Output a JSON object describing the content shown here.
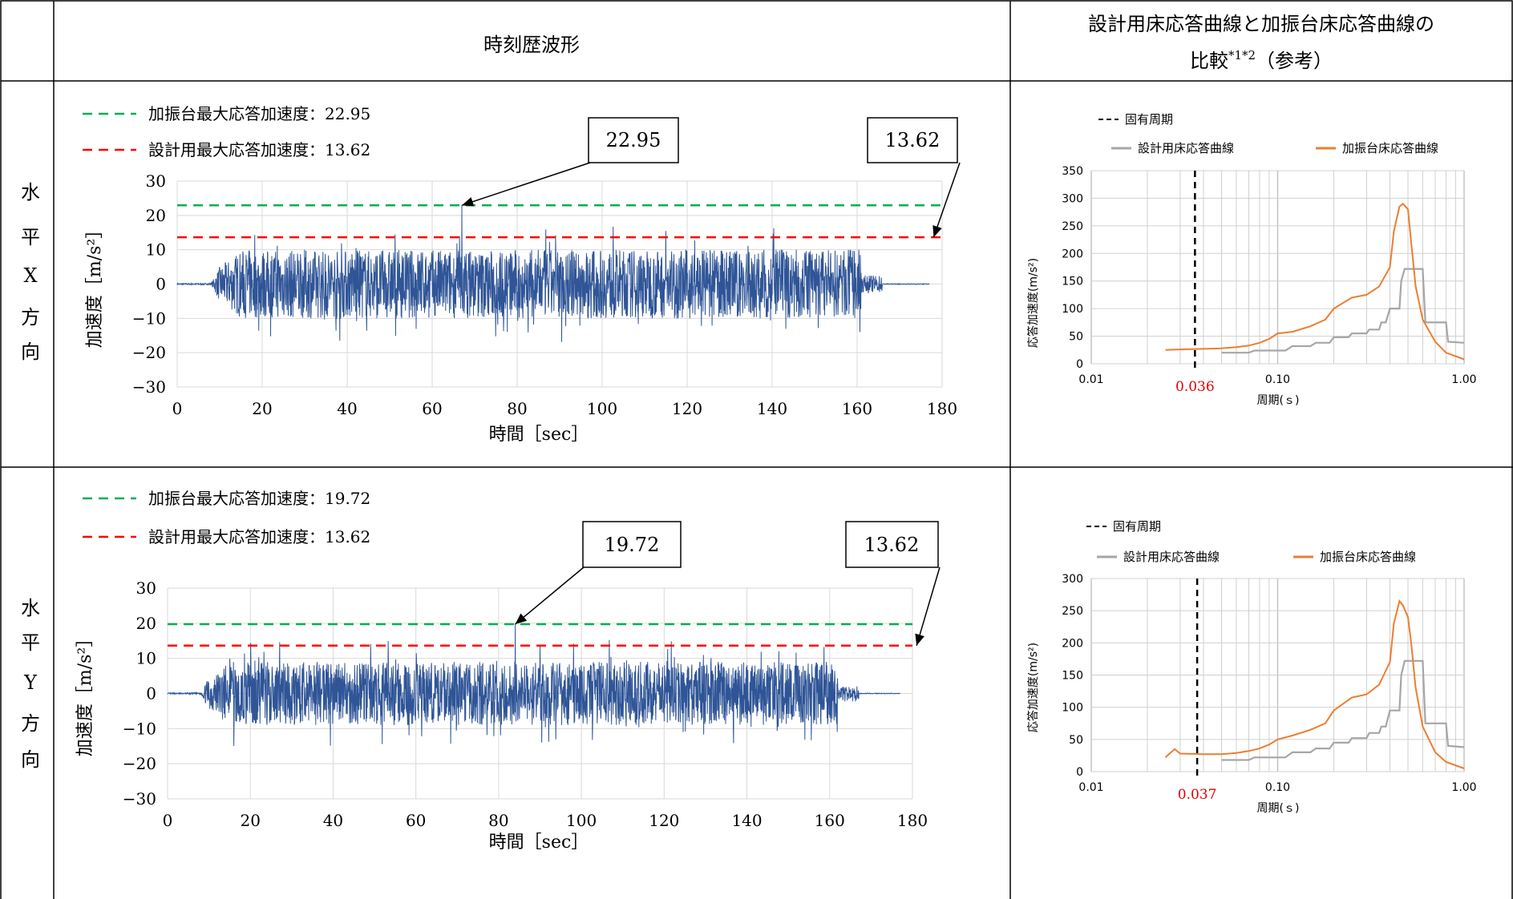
{
  "header": {
    "col_time": "時刻歴波形",
    "col_resp_line1": "設計用床応答曲線と加振台床応答曲線の",
    "col_resp_line2": "比較",
    "col_resp_sup": "*1*2",
    "col_resp_tail": "（参考）"
  },
  "rows": [
    {
      "direction_chars": [
        "水",
        "平",
        "X",
        "方",
        "向"
      ],
      "legend_green": "加振台最大応答加速度：22.95",
      "legend_red": "設計用最大応答加速度：13.62",
      "callout_green": "22.95",
      "callout_red": "13.62",
      "natural_period_label": "0.036"
    },
    {
      "direction_chars": [
        "水",
        "平",
        "Y",
        "方",
        "向"
      ],
      "legend_green": "加振台最大応答加速度：19.72",
      "legend_red": "設計用最大応答加速度：13.62",
      "callout_green": "19.72",
      "callout_red": "13.62",
      "natural_period_label": "0.037"
    }
  ],
  "chart_data": [
    {
      "type": "line",
      "chart": "time-history-X",
      "xlabel": "時間［sec］",
      "ylabel": "加速度［m/s²］",
      "xlim": [
        0,
        180
      ],
      "ylim": [
        -30,
        30
      ],
      "xticks": [
        "0",
        "20",
        "40",
        "60",
        "80",
        "100",
        "120",
        "140",
        "160",
        "180"
      ],
      "yticks": [
        "30",
        "20",
        "10",
        "0",
        "−10",
        "−20",
        "−30"
      ],
      "grid": true,
      "reference_lines": [
        {
          "legend": "加振台最大応答加速度：22.95",
          "y": 22.95,
          "color": "#00b050",
          "style": "dashed"
        },
        {
          "legend": "設計用最大応答加速度：13.62",
          "y": 13.62,
          "color": "#ff0000",
          "style": "dashed"
        }
      ],
      "series": [
        {
          "name": "",
          "color": "#2f5597",
          "signal": {
            "t_start": 0,
            "t_end": 177,
            "strong_start": 10,
            "strong_end": 163,
            "peak_pos": 22.95,
            "peak_neg": -22,
            "typical_amp": 10,
            "peak_time": 67
          }
        }
      ]
    },
    {
      "type": "line",
      "chart": "response-spectrum-X",
      "xlabel": "周期(ｓ)",
      "ylabel": "応答加速度(m/s²)",
      "xscale": "log",
      "xlim": [
        0.01,
        1.0
      ],
      "ylim": [
        0,
        350
      ],
      "xticks": [
        "0.01",
        "0.10",
        "1.00"
      ],
      "yticks": [
        "350",
        "300",
        "250",
        "200",
        "150",
        "100",
        "50",
        "0"
      ],
      "grid": true,
      "natural_period": {
        "legend": "固有周期",
        "x": 0.036,
        "label": "0.036",
        "color": "#000000"
      },
      "series": [
        {
          "name": "設計用床応答曲線",
          "color": "#a6a6a6",
          "x": [
            0.05,
            0.07,
            0.075,
            0.11,
            0.12,
            0.15,
            0.16,
            0.19,
            0.2,
            0.24,
            0.25,
            0.3,
            0.31,
            0.35,
            0.36,
            0.38,
            0.4,
            0.45,
            0.46,
            0.48,
            0.5,
            0.6,
            0.62,
            0.8,
            0.82,
            1.0
          ],
          "y": [
            20,
            20,
            24,
            24,
            32,
            32,
            38,
            38,
            48,
            48,
            55,
            55,
            62,
            62,
            75,
            75,
            100,
            100,
            150,
            172,
            172,
            172,
            75,
            75,
            40,
            38
          ]
        },
        {
          "name": "加振台床応答曲線",
          "color": "#ed7d31",
          "x": [
            0.025,
            0.03,
            0.04,
            0.05,
            0.06,
            0.07,
            0.08,
            0.09,
            0.1,
            0.12,
            0.15,
            0.18,
            0.2,
            0.25,
            0.3,
            0.35,
            0.4,
            0.42,
            0.45,
            0.47,
            0.5,
            0.52,
            0.55,
            0.6,
            0.7,
            0.8,
            1.0
          ],
          "y": [
            25,
            26,
            27,
            28,
            30,
            33,
            38,
            45,
            55,
            58,
            68,
            80,
            100,
            120,
            125,
            140,
            175,
            240,
            285,
            290,
            280,
            220,
            140,
            80,
            40,
            20,
            8
          ]
        }
      ]
    },
    {
      "type": "line",
      "chart": "time-history-Y",
      "xlabel": "時間［sec］",
      "ylabel": "加速度［m/s²］",
      "xlim": [
        0,
        180
      ],
      "ylim": [
        -30,
        30
      ],
      "xticks": [
        "0",
        "20",
        "40",
        "60",
        "80",
        "100",
        "120",
        "140",
        "160",
        "180"
      ],
      "yticks": [
        "30",
        "20",
        "10",
        "0",
        "−10",
        "−20",
        "−30"
      ],
      "grid": true,
      "reference_lines": [
        {
          "legend": "加振台最大応答加速度：19.72",
          "y": 19.72,
          "color": "#00b050",
          "style": "dashed"
        },
        {
          "legend": "設計用最大応答加速度：13.62",
          "y": 13.62,
          "color": "#ff0000",
          "style": "dashed"
        }
      ],
      "series": [
        {
          "name": "",
          "color": "#2f5597",
          "signal": {
            "t_start": 0,
            "t_end": 177,
            "strong_start": 10,
            "strong_end": 164,
            "peak_pos": 19.72,
            "peak_neg": -18,
            "typical_amp": 9,
            "peak_time": 84
          }
        }
      ]
    },
    {
      "type": "line",
      "chart": "response-spectrum-Y",
      "xlabel": "周期(ｓ)",
      "ylabel": "応答加速度(m/s²)",
      "xscale": "log",
      "xlim": [
        0.01,
        1.0
      ],
      "ylim": [
        0,
        300
      ],
      "xticks": [
        "0.01",
        "0.10",
        "1.00"
      ],
      "yticks": [
        "300",
        "250",
        "200",
        "150",
        "100",
        "50",
        "0"
      ],
      "grid": true,
      "natural_period": {
        "legend": "固有周期",
        "x": 0.037,
        "label": "0.037",
        "color": "#000000"
      },
      "series": [
        {
          "name": "設計用床応答曲線",
          "color": "#a6a6a6",
          "x": [
            0.05,
            0.07,
            0.075,
            0.11,
            0.12,
            0.15,
            0.16,
            0.19,
            0.2,
            0.24,
            0.25,
            0.3,
            0.31,
            0.35,
            0.36,
            0.38,
            0.4,
            0.45,
            0.46,
            0.48,
            0.5,
            0.6,
            0.62,
            0.8,
            0.82,
            1.0
          ],
          "y": [
            18,
            18,
            22,
            22,
            30,
            30,
            36,
            36,
            45,
            45,
            52,
            52,
            60,
            60,
            70,
            70,
            95,
            95,
            150,
            172,
            172,
            172,
            75,
            75,
            40,
            38
          ]
        },
        {
          "name": "加振台床応答曲線",
          "color": "#ed7d31",
          "x": [
            0.025,
            0.028,
            0.03,
            0.04,
            0.05,
            0.06,
            0.07,
            0.08,
            0.09,
            0.1,
            0.12,
            0.15,
            0.18,
            0.2,
            0.25,
            0.3,
            0.35,
            0.4,
            0.42,
            0.45,
            0.47,
            0.5,
            0.52,
            0.55,
            0.6,
            0.7,
            0.8,
            1.0
          ],
          "y": [
            22,
            35,
            28,
            27,
            27,
            29,
            32,
            36,
            42,
            50,
            56,
            65,
            75,
            95,
            115,
            120,
            135,
            170,
            230,
            265,
            258,
            240,
            200,
            130,
            70,
            30,
            15,
            5
          ]
        }
      ]
    }
  ]
}
